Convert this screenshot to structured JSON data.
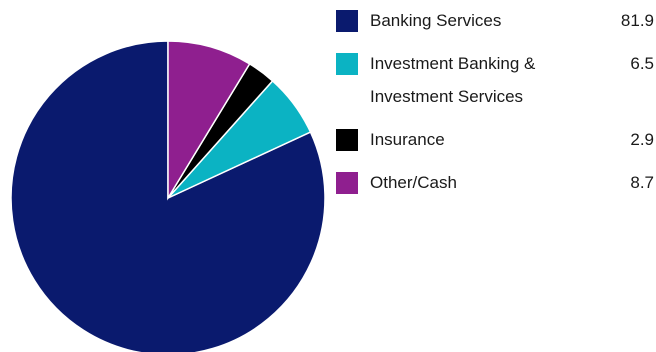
{
  "chart_data": {
    "type": "pie",
    "slices": [
      {
        "label": "Banking Services",
        "value": 81.9,
        "color": "#0a1a6e"
      },
      {
        "label": "Investment Banking & Investment Services",
        "label_lines": [
          "Investment Banking &",
          "Investment Services"
        ],
        "value": 6.5,
        "color": "#0bb3c3"
      },
      {
        "label": "Insurance",
        "value": 2.9,
        "color": "#000000"
      },
      {
        "label": "Other/Cash",
        "value": 8.7,
        "color": "#8f1f8f"
      }
    ],
    "value_labels": [
      "81.9",
      "6.5",
      "2.9",
      "8.7"
    ],
    "start_angle": "12 o'clock",
    "direction": "counter-clockwise",
    "legend_position": "right"
  }
}
